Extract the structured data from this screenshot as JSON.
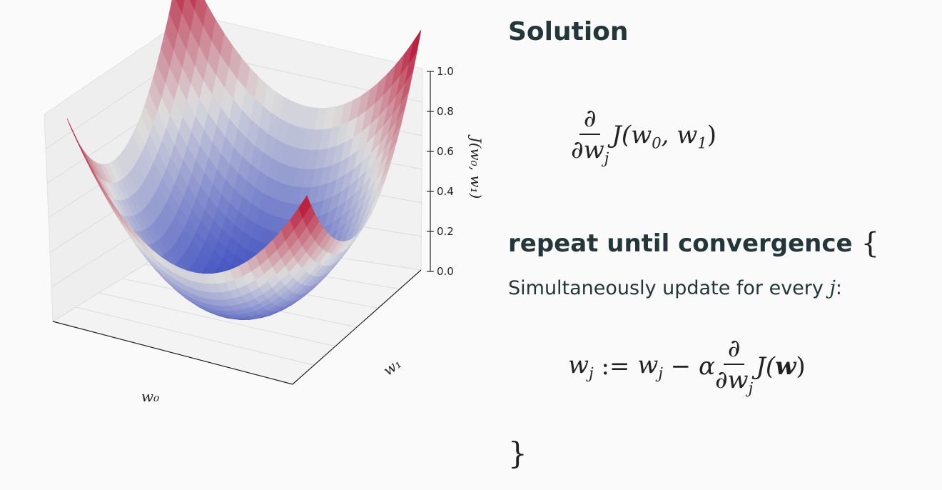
{
  "title": "Solution",
  "partial_derivative": {
    "numerator": "∂",
    "denominator_symbol": "∂w",
    "denominator_sub": "j",
    "function": "J(w",
    "arg0_sub": "0",
    "separator": ", w",
    "arg1_sub": "1",
    "close": ")"
  },
  "repeat": {
    "label": "repeat until convergence",
    "open_brace": "{",
    "instruction": "Simultaneously update for every ",
    "instruction_var": "j",
    "instruction_end": ":",
    "update_lhs": "w",
    "update_lhs_sub": "j",
    "assign": " := ",
    "update_rhs": "w",
    "update_rhs_sub": "j",
    "minus_alpha": " − α",
    "frac_num": "∂",
    "frac_den": "∂w",
    "frac_den_sub": "j",
    "func_open": "J(",
    "func_arg": "w",
    "func_close": ")",
    "close_brace": "}"
  },
  "plot": {
    "type": "surface",
    "colormap": "coolwarm",
    "x_label": "w₀",
    "y_label": "w₁",
    "z_label": "J(w₀, w₁)",
    "zlim": [
      0.0,
      1.0
    ],
    "z_ticks": [
      "0.0",
      "0.2",
      "0.4",
      "0.6",
      "0.8",
      "1.0"
    ],
    "colors": {
      "low": "#3b4cc0",
      "mid": "#dddddd",
      "high": "#b40426",
      "pane": "#efefef",
      "grid": "#dcdcdc"
    }
  }
}
